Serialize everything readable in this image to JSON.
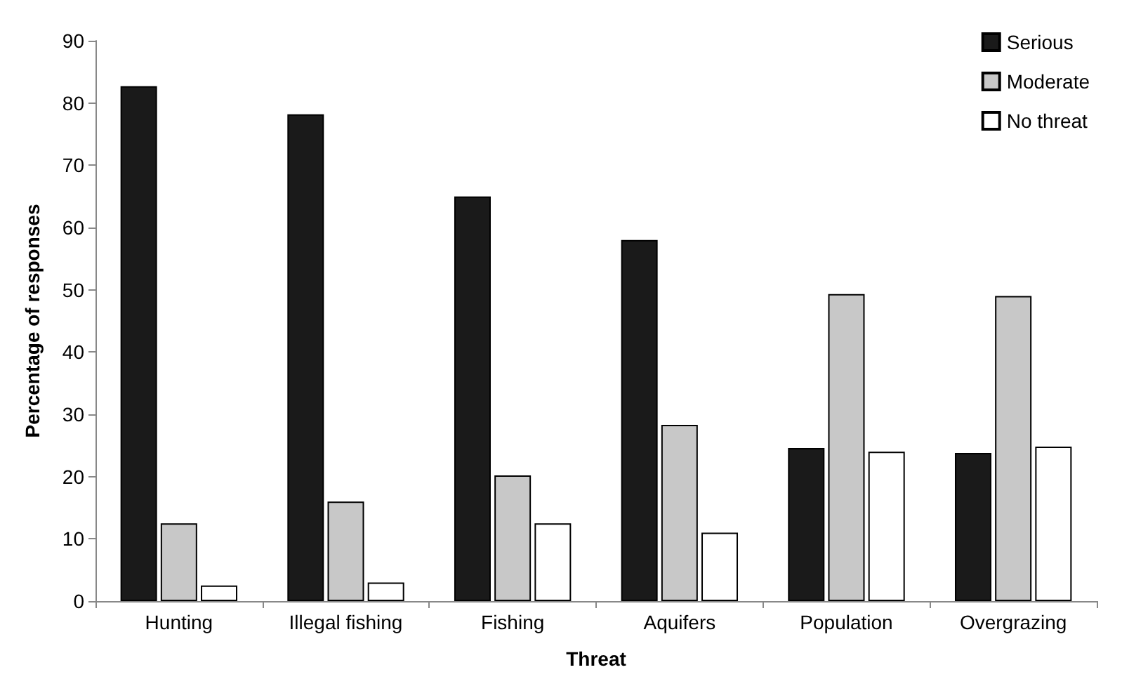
{
  "chart_data": {
    "type": "bar",
    "xlabel": "Threat",
    "ylabel": "Percentage of responses",
    "categories": [
      "Hunting",
      "Illegal fishing",
      "Fishing",
      "Aquifers",
      "Population",
      "Overgrazing"
    ],
    "series": [
      {
        "name": "Serious",
        "color": "#1a1a1a",
        "values": [
          82.7,
          78.2,
          65,
          58,
          24.6,
          23.8
        ]
      },
      {
        "name": "Moderate",
        "color": "#c8c8c8",
        "values": [
          12.5,
          16,
          20.2,
          28.3,
          49.3,
          49
        ]
      },
      {
        "name": "No threat",
        "color": "#ffffff",
        "values": [
          2.5,
          3,
          12.5,
          11,
          24,
          24.8
        ]
      }
    ],
    "ylim": [
      0,
      90
    ],
    "yticks": [
      0,
      10,
      20,
      30,
      40,
      50,
      60,
      70,
      80,
      90
    ],
    "grid": false,
    "legend": "top right"
  }
}
